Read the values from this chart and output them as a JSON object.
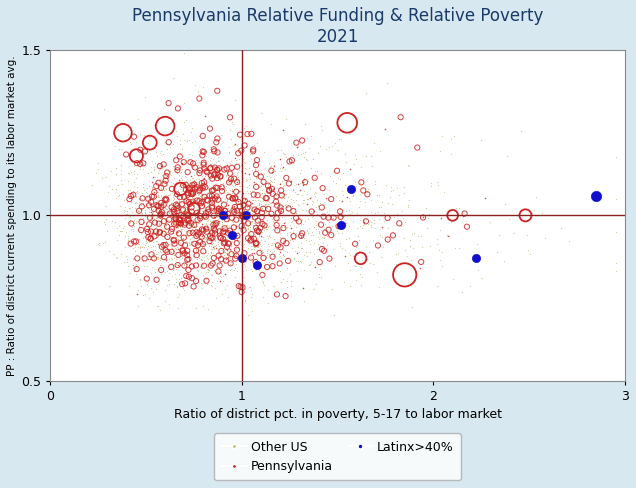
{
  "title": "Pennsylvania Relative Funding & Relative Poverty",
  "subtitle": "2021",
  "xlabel": "Ratio of district pct. in poverty, 5-17 to labor market",
  "ylabel": "PP : Ratio of district current spending to its labor market avg.",
  "xlim": [
    0,
    3
  ],
  "ylim": [
    0.5,
    1.5
  ],
  "xticks": [
    0,
    1,
    2,
    3
  ],
  "yticks": [
    0.5,
    1.0,
    1.5
  ],
  "hline": 1.0,
  "vline": 1.0,
  "hline_color": "#8B2020",
  "vline_color": "#8B2020",
  "bg_color": "#d8e8f0",
  "plot_bg_color": "#ffffff",
  "title_color": "#1a3a6b",
  "other_us_color": "#bcbc78",
  "pa_color": "#cc2222",
  "latinx_color": "#1010cc",
  "legend_labels": [
    "Other US",
    "Pennsylvania",
    "Latinx>40%"
  ],
  "seed": 42,
  "n_other_us": 2500,
  "n_pa": 500,
  "large_pa_x": [
    0.38,
    0.45,
    0.52,
    0.6,
    0.68,
    0.75,
    1.55,
    1.62,
    1.85,
    2.48,
    2.1
  ],
  "large_pa_y": [
    1.25,
    1.18,
    1.22,
    1.27,
    1.08,
    1.02,
    1.28,
    0.87,
    0.82,
    1.0,
    1.0
  ],
  "large_pa_s": [
    160,
    90,
    100,
    180,
    80,
    70,
    200,
    70,
    280,
    75,
    60
  ],
  "latinx_x": [
    0.9,
    0.95,
    1.0,
    1.02,
    1.08,
    1.52,
    1.57,
    2.22,
    2.85
  ],
  "latinx_y": [
    1.0,
    0.94,
    0.87,
    1.0,
    0.85,
    0.97,
    1.08,
    0.87,
    1.06
  ],
  "latinx_s": [
    35,
    35,
    35,
    35,
    35,
    35,
    35,
    35,
    55
  ]
}
